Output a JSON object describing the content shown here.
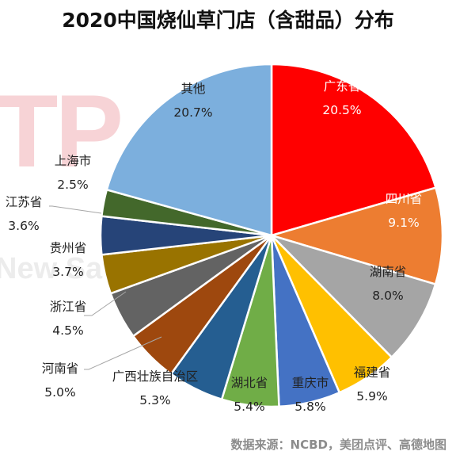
{
  "title": "2020中国烧仙草门店（含甜品）分布",
  "source": "数据来源：NCBD，美团点评、高德地图",
  "watermark": {
    "top": "TP",
    "bottom": "New Sate"
  },
  "chart_data": {
    "type": "pie",
    "title": "2020中国烧仙草门店（含甜品）分布",
    "unit": "%",
    "slices": [
      {
        "name": "广东省",
        "value": 20.5,
        "label": "20.5%",
        "color": "#ff0000",
        "text_color": "#ffffff"
      },
      {
        "name": "四川省",
        "value": 9.1,
        "label": "9.1%",
        "color": "#ed7d31",
        "text_color": "#ffffff"
      },
      {
        "name": "湖南省",
        "value": 8.0,
        "label": "8.0%",
        "color": "#a5a5a5",
        "text_color": "#222222"
      },
      {
        "name": "福建省",
        "value": 5.9,
        "label": "5.9%",
        "color": "#ffc000",
        "text_color": "#222222"
      },
      {
        "name": "重庆市",
        "value": 5.8,
        "label": "5.8%",
        "color": "#4472c4",
        "text_color": "#222222"
      },
      {
        "name": "湖北省",
        "value": 5.4,
        "label": "5.4%",
        "color": "#70ad47",
        "text_color": "#222222"
      },
      {
        "name": "广西壮族自治区",
        "value": 5.3,
        "label": "5.3%",
        "color": "#255e91",
        "text_color": "#222222"
      },
      {
        "name": "河南省",
        "value": 5.0,
        "label": "5.0%",
        "color": "#9e480e",
        "text_color": "#222222"
      },
      {
        "name": "浙江省",
        "value": 4.5,
        "label": "4.5%",
        "color": "#636363",
        "text_color": "#222222"
      },
      {
        "name": "贵州省",
        "value": 3.7,
        "label": "3.7%",
        "color": "#997300",
        "text_color": "#222222"
      },
      {
        "name": "江苏省",
        "value": 3.6,
        "label": "3.6%",
        "color": "#264478",
        "text_color": "#222222"
      },
      {
        "name": "上海市",
        "value": 2.5,
        "label": "2.5%",
        "color": "#43682b",
        "text_color": "#222222"
      },
      {
        "name": "其他",
        "value": 20.7,
        "label": "20.7%",
        "color": "#7cafdd",
        "text_color": "#222222"
      }
    ]
  }
}
